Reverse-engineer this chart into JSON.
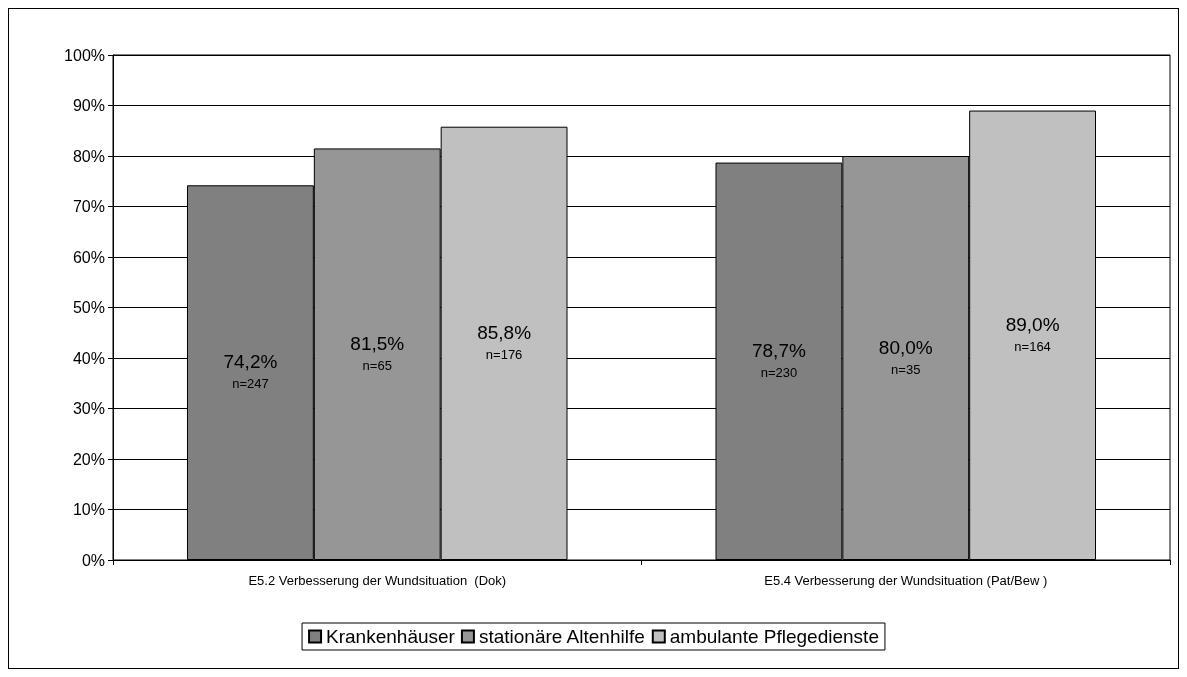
{
  "chart_data": {
    "type": "bar",
    "categories": [
      "E5.2 Verbesserung der Wundsituation  (Dok)",
      "E5.4 Verbesserung der Wundsituation (Pat/Bew )"
    ],
    "series": [
      {
        "name": "Krankenhäuser",
        "color": "#808080",
        "values": [
          74.2,
          78.7
        ],
        "value_labels": [
          "74,2%\nn=247",
          "78,7%\nn=230"
        ]
      },
      {
        "name": "stationäre Altenhilfe",
        "color": "#969696",
        "values": [
          81.5,
          80.0
        ],
        "value_labels": [
          "81,5%\nn=65",
          "80,0%\nn=35"
        ]
      },
      {
        "name": "ambulante Pflegedienste",
        "color": "#c0c0c0",
        "values": [
          85.8,
          89.0
        ],
        "value_labels": [
          "85,8%\nn=176",
          "89,0%\nn=164"
        ]
      }
    ],
    "ylim": [
      0,
      100
    ],
    "yticks": [
      {
        "value": 0,
        "label": "0%"
      },
      {
        "value": 10,
        "label": "10%"
      },
      {
        "value": 20,
        "label": "20%"
      },
      {
        "value": 30,
        "label": "30%"
      },
      {
        "value": 40,
        "label": "40%"
      },
      {
        "value": 50,
        "label": "50%"
      },
      {
        "value": 60,
        "label": "60%"
      },
      {
        "value": 70,
        "label": "70%"
      },
      {
        "value": 80,
        "label": "80%"
      },
      {
        "value": 90,
        "label": "90%"
      },
      {
        "value": 100,
        "label": "100%"
      }
    ],
    "grid": "y",
    "legend": "bottom"
  }
}
